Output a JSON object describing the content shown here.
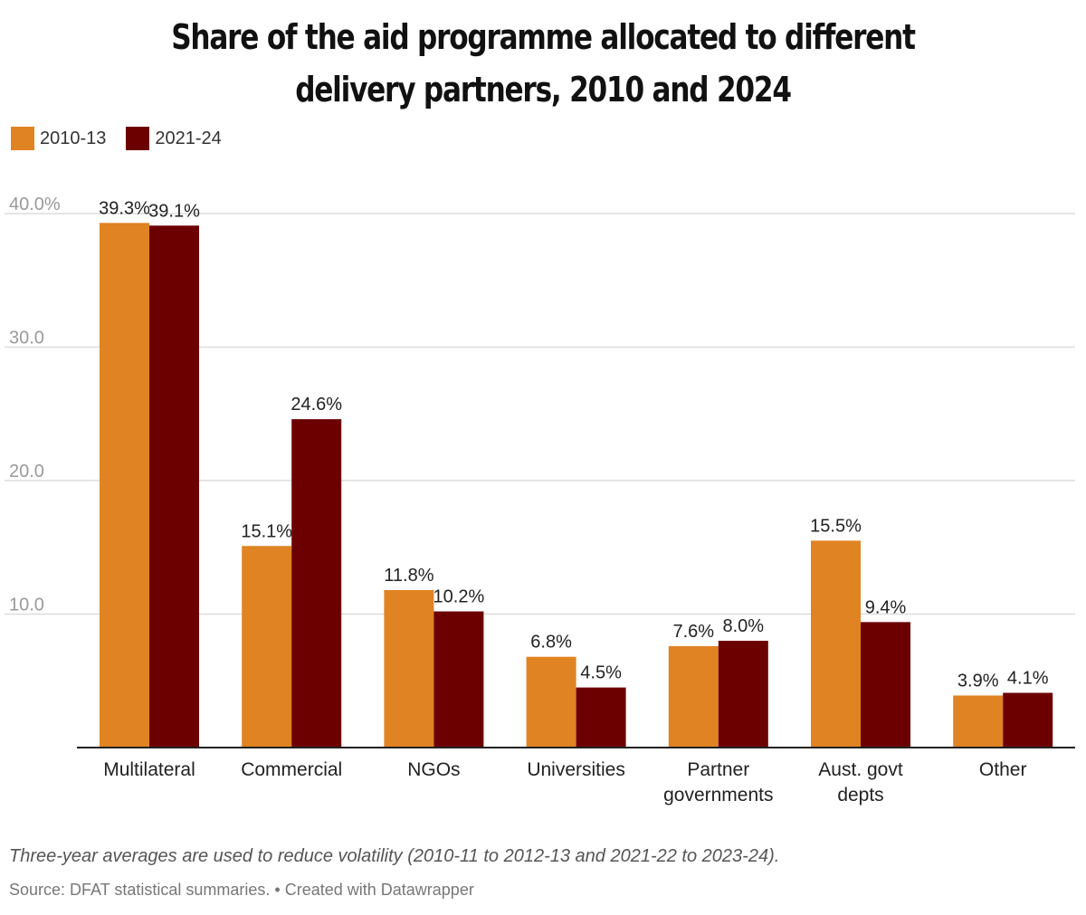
{
  "chart_data": {
    "type": "bar",
    "title": "Share of the aid programme allocated to different delivery partners, 2010 and 2024",
    "categories": [
      "Multilateral",
      "Commercial",
      "NGOs",
      "Universities",
      "Partner governments",
      "Aust. govt depts",
      "Other"
    ],
    "category_lines": [
      [
        "Multilateral"
      ],
      [
        "Commercial"
      ],
      [
        "NGOs"
      ],
      [
        "Universities"
      ],
      [
        "Partner",
        "governments"
      ],
      [
        "Aust. govt",
        "depts"
      ],
      [
        "Other"
      ]
    ],
    "series": [
      {
        "name": "2010-13",
        "color": "#e08322",
        "values": [
          39.3,
          15.1,
          11.8,
          6.8,
          7.6,
          15.5,
          3.9
        ],
        "labels": [
          "39.3%",
          "15.1%",
          "11.8%",
          "6.8%",
          "7.6%",
          "15.5%",
          "3.9%"
        ]
      },
      {
        "name": "2021-24",
        "color": "#6c0000",
        "values": [
          39.1,
          24.6,
          10.2,
          4.5,
          8.0,
          9.4,
          4.1
        ],
        "labels": [
          "39.1%",
          "24.6%",
          "10.2%",
          "4.5%",
          "8.0%",
          "9.4%",
          "4.1%"
        ]
      }
    ],
    "yticks": [
      10,
      20,
      30,
      40
    ],
    "ytick_labels": [
      "10.0",
      "20.0",
      "30.0",
      "40.0%"
    ],
    "ylim": [
      0,
      40
    ],
    "xlabel": "",
    "ylabel": "",
    "grid": true,
    "legend": "top-left"
  },
  "footer": {
    "note": "Three-year averages are used to reduce volatility (2010-11 to 2012-13 and 2021-22 to 2023-24).",
    "source": "Source: DFAT statistical summaries. • Created with Datawrapper"
  }
}
